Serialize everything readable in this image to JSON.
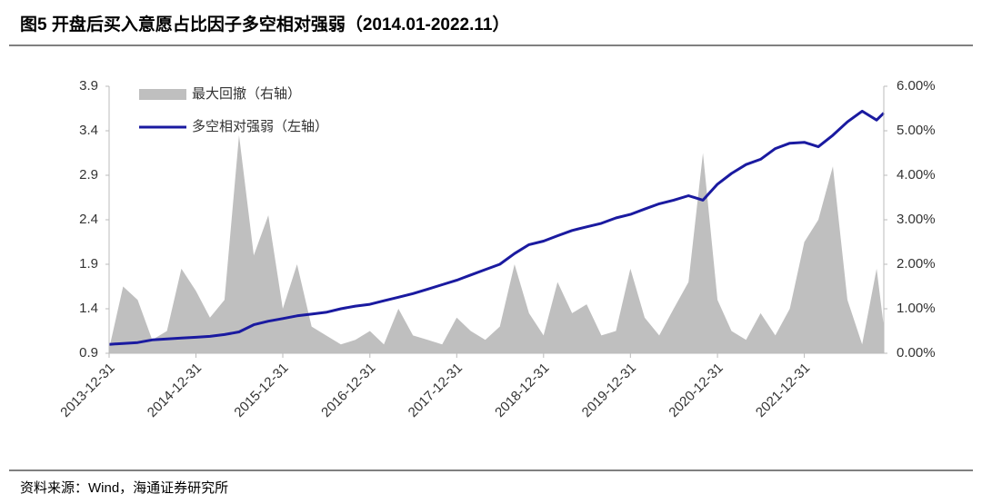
{
  "chart_data": {
    "type": "line",
    "title": "图5  开盘后买入意愿占比因子多空相对强弱（2014.01-2022.11）",
    "source": "资料来源：Wind，海通证券研究所",
    "x": [
      "2013-12-31",
      "2014-02-28",
      "2014-04-30",
      "2014-06-30",
      "2014-08-31",
      "2014-10-31",
      "2014-12-31",
      "2015-02-28",
      "2015-04-30",
      "2015-06-30",
      "2015-08-31",
      "2015-10-31",
      "2015-12-31",
      "2016-02-29",
      "2016-04-30",
      "2016-06-30",
      "2016-08-31",
      "2016-10-31",
      "2016-12-31",
      "2017-02-28",
      "2017-04-30",
      "2017-06-30",
      "2017-08-31",
      "2017-10-31",
      "2017-12-31",
      "2018-02-28",
      "2018-04-30",
      "2018-06-30",
      "2018-08-31",
      "2018-10-31",
      "2018-12-31",
      "2019-02-28",
      "2019-04-30",
      "2019-06-30",
      "2019-08-31",
      "2019-10-31",
      "2019-12-31",
      "2020-02-29",
      "2020-04-30",
      "2020-06-30",
      "2020-08-31",
      "2020-10-31",
      "2020-12-31",
      "2021-02-28",
      "2021-04-30",
      "2021-06-30",
      "2021-08-31",
      "2021-10-31",
      "2021-12-31",
      "2022-02-28",
      "2022-04-30",
      "2022-06-30",
      "2022-08-31",
      "2022-10-31",
      "2022-11-30"
    ],
    "series": [
      {
        "name": "最大回撤（右轴）",
        "type": "area",
        "axis": "y2",
        "color": "#bfbfbf",
        "values": [
          0.1,
          1.5,
          1.2,
          0.3,
          0.5,
          1.9,
          1.4,
          0.8,
          1.2,
          4.9,
          2.2,
          3.1,
          1.0,
          2.0,
          0.6,
          0.4,
          0.2,
          0.3,
          0.5,
          0.2,
          1.0,
          0.4,
          0.3,
          0.2,
          0.8,
          0.5,
          0.3,
          0.6,
          2.0,
          0.9,
          0.4,
          1.6,
          0.9,
          1.1,
          0.4,
          0.5,
          1.9,
          0.8,
          0.4,
          1.0,
          1.6,
          4.5,
          1.2,
          0.5,
          0.3,
          0.9,
          0.4,
          1.0,
          2.5,
          3.0,
          4.2,
          1.2,
          0.2,
          1.9,
          0.6
        ]
      },
      {
        "name": "多空相对强弱（左轴）",
        "type": "line",
        "axis": "y",
        "color": "#1a1aa0",
        "values": [
          1.0,
          1.01,
          1.02,
          1.05,
          1.06,
          1.07,
          1.08,
          1.09,
          1.11,
          1.14,
          1.22,
          1.26,
          1.29,
          1.32,
          1.34,
          1.36,
          1.4,
          1.43,
          1.45,
          1.49,
          1.53,
          1.57,
          1.62,
          1.67,
          1.72,
          1.78,
          1.84,
          1.9,
          2.02,
          2.12,
          2.16,
          2.22,
          2.28,
          2.32,
          2.36,
          2.42,
          2.46,
          2.52,
          2.58,
          2.62,
          2.67,
          2.62,
          2.8,
          2.92,
          3.02,
          3.08,
          3.2,
          3.26,
          3.27,
          3.22,
          3.35,
          3.5,
          3.62,
          3.52,
          3.6
        ]
      }
    ],
    "xlim": [
      "2013-12-31",
      "2022-11-30"
    ],
    "xticks": [
      "2013-12-31",
      "2014-12-31",
      "2015-12-31",
      "2016-12-31",
      "2017-12-31",
      "2018-12-31",
      "2019-12-31",
      "2020-12-31",
      "2021-12-31"
    ],
    "ylim": [
      0.9,
      3.9
    ],
    "yticks": [
      0.9,
      1.4,
      1.9,
      2.4,
      2.9,
      3.4,
      3.9
    ],
    "y2lim": [
      0,
      6
    ],
    "y2ticks": [
      {
        "value": 0,
        "label": "0.00%"
      },
      {
        "value": 1,
        "label": "1.00%"
      },
      {
        "value": 2,
        "label": "2.00%"
      },
      {
        "value": 3,
        "label": "3.00%"
      },
      {
        "value": 4,
        "label": "4.00%"
      },
      {
        "value": 5,
        "label": "5.00%"
      },
      {
        "value": 6,
        "label": "6.00%"
      }
    ],
    "legend": "upper left"
  }
}
